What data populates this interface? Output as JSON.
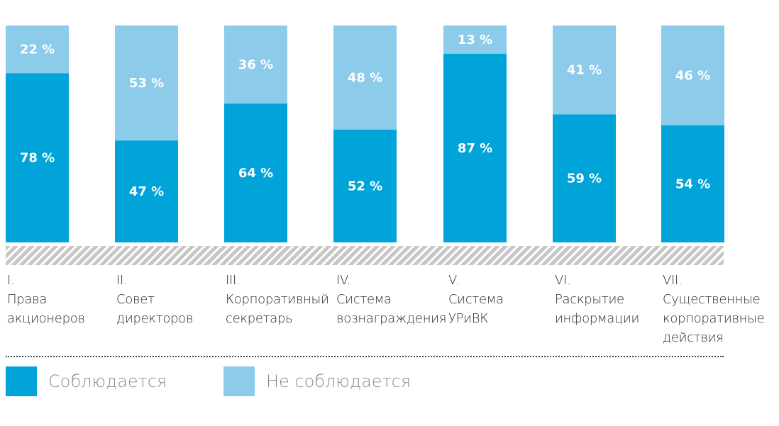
{
  "chart_data": {
    "type": "bar",
    "stacked": true,
    "categories": [
      "I.\nПрава\nакционеров",
      "II.\nСовет\nдиректоров",
      "III.\nКорпоративный\nсекретарь",
      "IV.\nСистема\nвознаграждения",
      "V.\nСистема\nУРиВК",
      "VI.\nРаскрытие\nинформации",
      "VII.\nСущественные\nкорпоративные\nдействия"
    ],
    "series": [
      {
        "name": "Соблюдается",
        "color": "#00a4d8",
        "values": [
          78,
          47,
          64,
          52,
          87,
          59,
          54
        ]
      },
      {
        "name": "Не соблюдается",
        "color": "#8ccbea",
        "values": [
          22,
          53,
          36,
          48,
          13,
          41,
          46
        ]
      }
    ],
    "value_labels": {
      "compliant": [
        "78 %",
        "47 %",
        "64 %",
        "52 %",
        "87 %",
        "59 %",
        "54 %"
      ],
      "non_compliant": [
        "22 %",
        "53 %",
        "36 %",
        "48 %",
        "13 %",
        "41 %",
        "46 %"
      ]
    },
    "ylim": [
      0,
      100
    ],
    "grid": false,
    "legend_position": "bottom-left"
  },
  "legend": {
    "items": [
      {
        "label": "Соблюдается",
        "color": "#00a4d8"
      },
      {
        "label": "Не соблюдается",
        "color": "#8ccbea"
      }
    ]
  }
}
